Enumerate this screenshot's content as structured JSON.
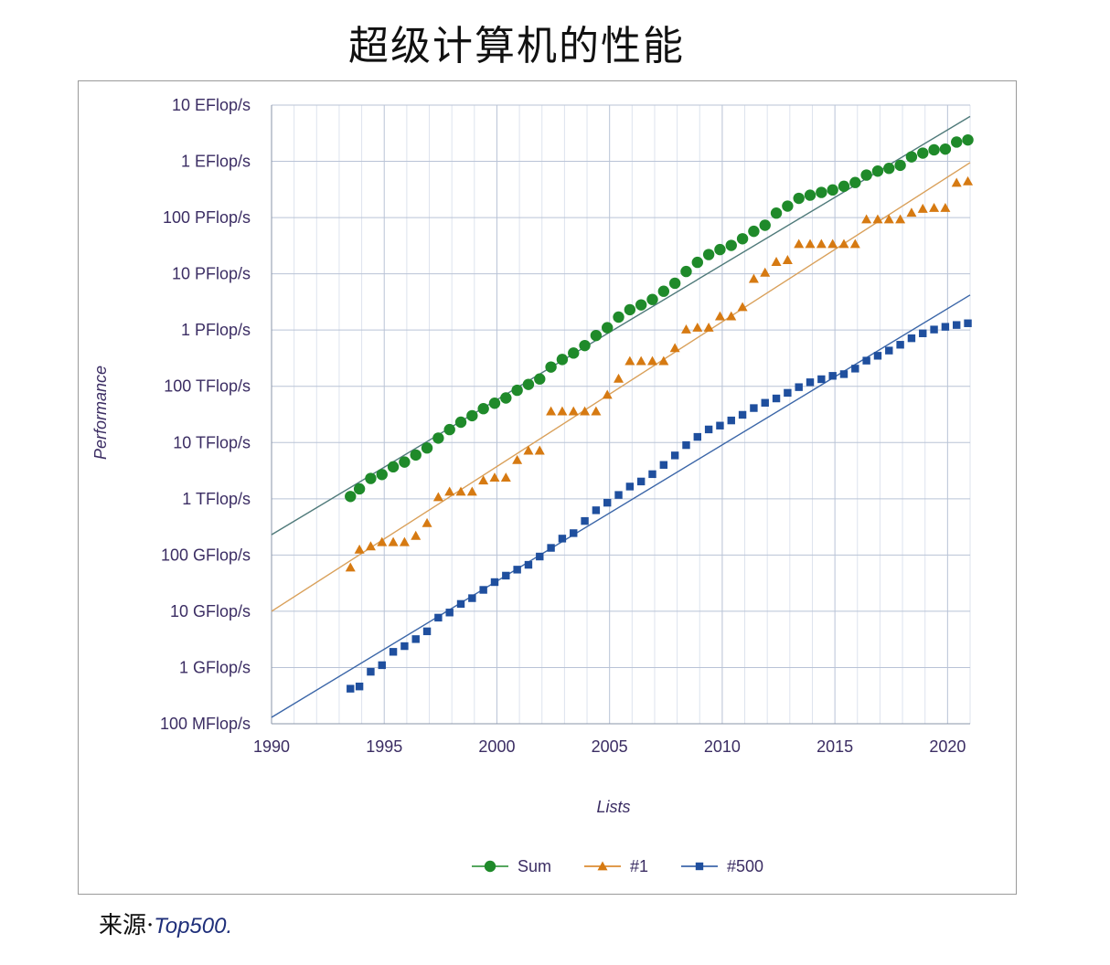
{
  "page_title": "超级计算机的性能",
  "source": {
    "prefix": "来源·",
    "name": "Top500."
  },
  "chart_data": {
    "type": "scatter",
    "title": "超级计算机的性能",
    "xlabel": "Lists",
    "ylabel": "Performance",
    "xlim": [
      1990,
      2021
    ],
    "ylim_log10_gflops": [
      -1,
      10
    ],
    "y_scale": "log",
    "y_unit": "GFlop/s",
    "x_ticks": [
      "1990",
      "1995",
      "2000",
      "2005",
      "2010",
      "2015",
      "2020"
    ],
    "x_tick_values": [
      1990,
      1995,
      2000,
      2005,
      2010,
      2015,
      2020
    ],
    "y_ticks": [
      "100 MFlop/s",
      "1 GFlop/s",
      "10 GFlop/s",
      "100 GFlop/s",
      "1 TFlop/s",
      "10 TFlop/s",
      "100 TFlop/s",
      "1 PFlop/s",
      "10 PFlop/s",
      "100 PFlop/s",
      "1 EFlop/s",
      "10 EFlop/s"
    ],
    "y_tick_values": [
      0.1,
      1,
      10,
      100,
      1000,
      10000,
      100000,
      1000000,
      10000000,
      100000000,
      1000000000,
      10000000000
    ],
    "grid": true,
    "legend_position": "bottom",
    "series": [
      {
        "name": "Sum",
        "color": "#1f8a2a",
        "marker": "circle",
        "x": [
          1993.5,
          1993.9,
          1994.4,
          1994.9,
          1995.4,
          1995.9,
          1996.4,
          1996.9,
          1997.4,
          1997.9,
          1998.4,
          1998.9,
          1999.4,
          1999.9,
          2000.4,
          2000.9,
          2001.4,
          2001.9,
          2002.4,
          2002.9,
          2003.4,
          2003.9,
          2004.4,
          2004.9,
          2005.4,
          2005.9,
          2006.4,
          2006.9,
          2007.4,
          2007.9,
          2008.4,
          2008.9,
          2009.4,
          2009.9,
          2010.4,
          2010.9,
          2011.4,
          2011.9,
          2012.4,
          2012.9,
          2013.4,
          2013.9,
          2014.4,
          2014.9,
          2015.4,
          2015.9,
          2016.4,
          2016.9,
          2017.4,
          2017.9,
          2018.4,
          2018.9,
          2019.4,
          2019.9,
          2020.4,
          2020.9
        ],
        "y": [
          1100,
          1500,
          2300,
          2700,
          3700,
          4500,
          6000,
          8000,
          12000,
          17000,
          23000,
          30000,
          40000,
          50000,
          62000,
          85000,
          108000,
          135000,
          220000,
          300000,
          390000,
          530000,
          800000,
          1100000,
          1700000,
          2300000,
          2800000,
          3500000,
          4900000,
          6800000,
          11000000,
          16000000,
          22000000,
          27000000,
          32000000,
          42000000,
          57000000,
          73000000,
          120000000,
          160000000,
          220000000,
          250000000,
          280000000,
          310000000,
          360000000,
          420000000,
          570000000,
          670000000,
          750000000,
          850000000,
          1200000000,
          1400000000,
          1600000000,
          1650000000,
          2200000000,
          2400000000
        ]
      },
      {
        "name": "#1",
        "color": "#d67a12",
        "marker": "triangle",
        "x": [
          1993.5,
          1993.9,
          1994.4,
          1994.9,
          1995.4,
          1995.9,
          1996.4,
          1996.9,
          1997.4,
          1997.9,
          1998.4,
          1998.9,
          1999.4,
          1999.9,
          2000.4,
          2000.9,
          2001.4,
          2001.9,
          2002.4,
          2002.9,
          2003.4,
          2003.9,
          2004.4,
          2004.9,
          2005.4,
          2005.9,
          2006.4,
          2006.9,
          2007.4,
          2007.9,
          2008.4,
          2008.9,
          2009.4,
          2009.9,
          2010.4,
          2010.9,
          2011.4,
          2011.9,
          2012.4,
          2012.9,
          2013.4,
          2013.9,
          2014.4,
          2014.9,
          2015.4,
          2015.9,
          2016.4,
          2016.9,
          2017.4,
          2017.9,
          2018.4,
          2018.9,
          2019.4,
          2019.9,
          2020.4,
          2020.9
        ],
        "y": [
          60,
          125,
          143,
          170,
          170,
          170,
          220,
          370,
          1070,
          1340,
          1340,
          1340,
          2120,
          2380,
          2380,
          4900,
          7200,
          7200,
          35900,
          35900,
          35900,
          35900,
          35900,
          70700,
          136800,
          280600,
          280600,
          280600,
          280600,
          478200,
          1026000,
          1105000,
          1105000,
          1759000,
          1759000,
          2566000,
          8162000,
          10510000,
          16320000,
          17590000,
          33860000,
          33860000,
          33860000,
          33860000,
          33860000,
          33860000,
          93010000,
          93010000,
          93010000,
          93010000,
          122300000,
          143500000,
          148600000,
          148600000,
          415500000,
          442000000
        ]
      },
      {
        "name": "#500",
        "color": "#1f4f9e",
        "marker": "square",
        "x": [
          1993.5,
          1993.9,
          1994.4,
          1994.9,
          1995.4,
          1995.9,
          1996.4,
          1996.9,
          1997.4,
          1997.9,
          1998.4,
          1998.9,
          1999.4,
          1999.9,
          2000.4,
          2000.9,
          2001.4,
          2001.9,
          2002.4,
          2002.9,
          2003.4,
          2003.9,
          2004.4,
          2004.9,
          2005.4,
          2005.9,
          2006.4,
          2006.9,
          2007.4,
          2007.9,
          2008.4,
          2008.9,
          2009.4,
          2009.9,
          2010.4,
          2010.9,
          2011.4,
          2011.9,
          2012.4,
          2012.9,
          2013.4,
          2013.9,
          2014.4,
          2014.9,
          2015.4,
          2015.9,
          2016.4,
          2016.9,
          2017.4,
          2017.9,
          2018.4,
          2018.9,
          2019.4,
          2019.9,
          2020.4,
          2020.9
        ],
        "y": [
          0.42,
          0.46,
          0.84,
          1.1,
          1.9,
          2.4,
          3.2,
          4.4,
          7.7,
          9.5,
          13.5,
          17.1,
          24,
          33,
          43,
          55,
          67,
          94,
          134,
          196,
          245,
          403,
          625,
          851,
          1170,
          1650,
          2030,
          2740,
          4000,
          5900,
          9000,
          12600,
          17100,
          20000,
          24700,
          31100,
          41000,
          50900,
          60800,
          76500,
          96600,
          118000,
          133700,
          153400,
          164500,
          206300,
          286000,
          349000,
          432000,
          548000,
          715000,
          874000,
          1022000,
          1142000,
          1230000,
          1320000
        ]
      }
    ],
    "trend_lines": [
      {
        "name": "Sum",
        "color": "#4f7a7a",
        "x": [
          1990,
          2021
        ],
        "y": [
          230,
          6300000000
        ]
      },
      {
        "name": "#1",
        "color": "#d9a05a",
        "x": [
          1990,
          2021
        ],
        "y": [
          10,
          950000000
        ]
      },
      {
        "name": "#500",
        "color": "#3b66a8",
        "x": [
          1990,
          2021
        ],
        "y": [
          0.13,
          4200000
        ]
      }
    ]
  }
}
